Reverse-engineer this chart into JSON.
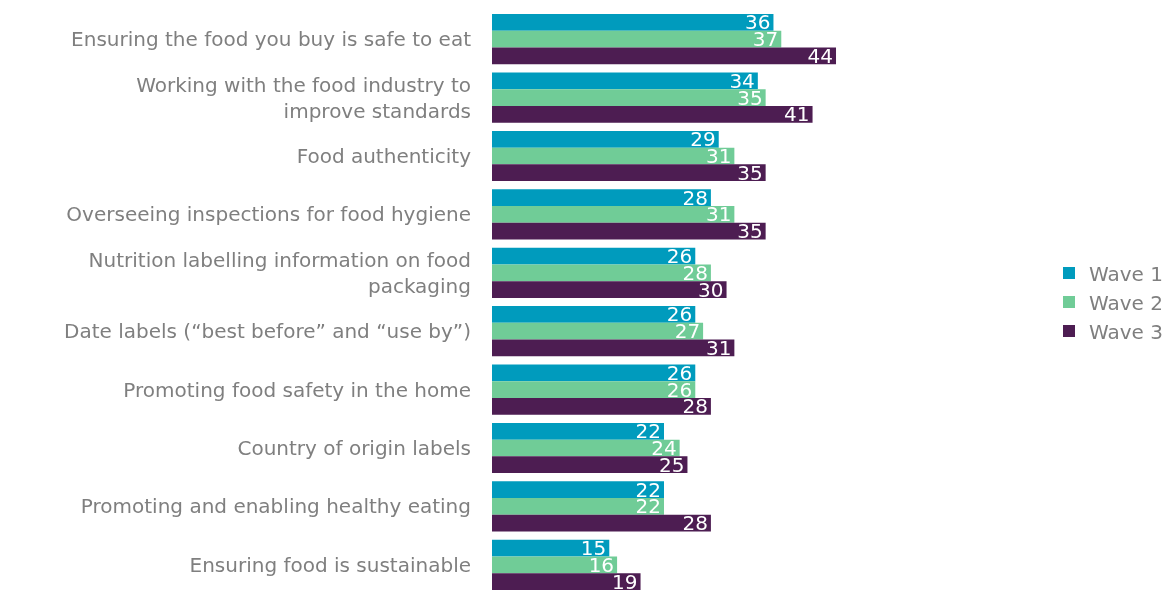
{
  "chart_data": {
    "type": "bar",
    "orientation": "horizontal",
    "data_labels": true,
    "legend": "right",
    "grid": false,
    "tick_labels": "y",
    "categories": [
      "Ensuring the food you buy is safe to eat",
      "Working with the food industry to\nimprove standards",
      "Food authenticity",
      "Overseeing inspections for food hygiene",
      "Nutrition labelling information on food\npackaging",
      "Date labels (“best before” and “use by”)",
      "Promoting food safety in the home",
      "Country of origin labels",
      "Promoting and enabling healthy eating",
      "Ensuring food is sustainable"
    ],
    "series": [
      {
        "name": "Wave 1",
        "color": "#009bbd",
        "values": [
          36,
          34,
          29,
          28,
          26,
          26,
          26,
          22,
          22,
          15
        ]
      },
      {
        "name": "Wave 2",
        "color": "#70cc97",
        "values": [
          37,
          35,
          31,
          31,
          28,
          27,
          26,
          24,
          22,
          16
        ]
      },
      {
        "name": "Wave 3",
        "color": "#4d1d52",
        "values": [
          44,
          41,
          35,
          35,
          30,
          31,
          28,
          25,
          28,
          19
        ]
      }
    ]
  }
}
